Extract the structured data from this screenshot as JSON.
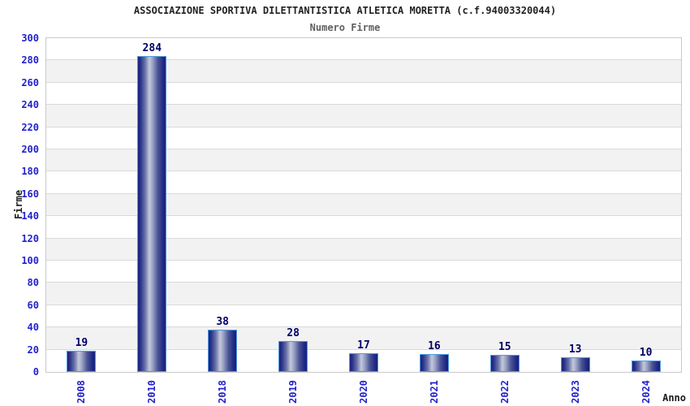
{
  "chart_data": {
    "type": "bar",
    "title": "ASSOCIAZIONE SPORTIVA DILETTANTISTICA ATLETICA MORETTA (c.f.94003320044)",
    "subtitle": "Numero Firme",
    "xlabel": "Anno",
    "ylabel": "Firme",
    "categories": [
      "2008",
      "2010",
      "2018",
      "2019",
      "2020",
      "2021",
      "2022",
      "2023",
      "2024"
    ],
    "values": [
      19,
      284,
      38,
      28,
      17,
      16,
      15,
      13,
      10
    ],
    "ylim": [
      0,
      300
    ],
    "ytick_step": 20,
    "grid": true,
    "legend_position": "none",
    "colors": {
      "tick_label": "#2222cc",
      "value_label": "#000066",
      "title": "#222222",
      "subtitle": "#606060",
      "axis_title": "#1a1a1a",
      "band": "#f2f2f2",
      "gridline": "#d9d9d9",
      "plot_border": "#c9c9c9",
      "bar_dark": "#1b2380",
      "bar_light": "#c3c8dc",
      "bar_border": "#4e9be0",
      "background": "#ffffff"
    }
  }
}
